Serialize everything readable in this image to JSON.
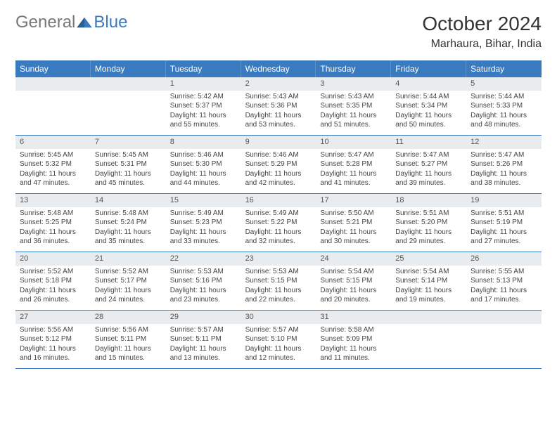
{
  "logo": {
    "general": "General",
    "blue": "Blue"
  },
  "title": "October 2024",
  "location": "Marhaura, Bihar, India",
  "colors": {
    "header_bg": "#3a7bbf",
    "header_text": "#ffffff",
    "daynum_bg": "#e9ecef",
    "week_border": "#3a7bbf",
    "body_text": "#444444"
  },
  "weekdays": [
    "Sunday",
    "Monday",
    "Tuesday",
    "Wednesday",
    "Thursday",
    "Friday",
    "Saturday"
  ],
  "weeks": [
    [
      {
        "n": "",
        "lines": [
          "",
          "",
          "",
          ""
        ]
      },
      {
        "n": "",
        "lines": [
          "",
          "",
          "",
          ""
        ]
      },
      {
        "n": "1",
        "lines": [
          "Sunrise: 5:42 AM",
          "Sunset: 5:37 PM",
          "Daylight: 11 hours",
          "and 55 minutes."
        ]
      },
      {
        "n": "2",
        "lines": [
          "Sunrise: 5:43 AM",
          "Sunset: 5:36 PM",
          "Daylight: 11 hours",
          "and 53 minutes."
        ]
      },
      {
        "n": "3",
        "lines": [
          "Sunrise: 5:43 AM",
          "Sunset: 5:35 PM",
          "Daylight: 11 hours",
          "and 51 minutes."
        ]
      },
      {
        "n": "4",
        "lines": [
          "Sunrise: 5:44 AM",
          "Sunset: 5:34 PM",
          "Daylight: 11 hours",
          "and 50 minutes."
        ]
      },
      {
        "n": "5",
        "lines": [
          "Sunrise: 5:44 AM",
          "Sunset: 5:33 PM",
          "Daylight: 11 hours",
          "and 48 minutes."
        ]
      }
    ],
    [
      {
        "n": "6",
        "lines": [
          "Sunrise: 5:45 AM",
          "Sunset: 5:32 PM",
          "Daylight: 11 hours",
          "and 47 minutes."
        ]
      },
      {
        "n": "7",
        "lines": [
          "Sunrise: 5:45 AM",
          "Sunset: 5:31 PM",
          "Daylight: 11 hours",
          "and 45 minutes."
        ]
      },
      {
        "n": "8",
        "lines": [
          "Sunrise: 5:46 AM",
          "Sunset: 5:30 PM",
          "Daylight: 11 hours",
          "and 44 minutes."
        ]
      },
      {
        "n": "9",
        "lines": [
          "Sunrise: 5:46 AM",
          "Sunset: 5:29 PM",
          "Daylight: 11 hours",
          "and 42 minutes."
        ]
      },
      {
        "n": "10",
        "lines": [
          "Sunrise: 5:47 AM",
          "Sunset: 5:28 PM",
          "Daylight: 11 hours",
          "and 41 minutes."
        ]
      },
      {
        "n": "11",
        "lines": [
          "Sunrise: 5:47 AM",
          "Sunset: 5:27 PM",
          "Daylight: 11 hours",
          "and 39 minutes."
        ]
      },
      {
        "n": "12",
        "lines": [
          "Sunrise: 5:47 AM",
          "Sunset: 5:26 PM",
          "Daylight: 11 hours",
          "and 38 minutes."
        ]
      }
    ],
    [
      {
        "n": "13",
        "lines": [
          "Sunrise: 5:48 AM",
          "Sunset: 5:25 PM",
          "Daylight: 11 hours",
          "and 36 minutes."
        ]
      },
      {
        "n": "14",
        "lines": [
          "Sunrise: 5:48 AM",
          "Sunset: 5:24 PM",
          "Daylight: 11 hours",
          "and 35 minutes."
        ]
      },
      {
        "n": "15",
        "lines": [
          "Sunrise: 5:49 AM",
          "Sunset: 5:23 PM",
          "Daylight: 11 hours",
          "and 33 minutes."
        ]
      },
      {
        "n": "16",
        "lines": [
          "Sunrise: 5:49 AM",
          "Sunset: 5:22 PM",
          "Daylight: 11 hours",
          "and 32 minutes."
        ]
      },
      {
        "n": "17",
        "lines": [
          "Sunrise: 5:50 AM",
          "Sunset: 5:21 PM",
          "Daylight: 11 hours",
          "and 30 minutes."
        ]
      },
      {
        "n": "18",
        "lines": [
          "Sunrise: 5:51 AM",
          "Sunset: 5:20 PM",
          "Daylight: 11 hours",
          "and 29 minutes."
        ]
      },
      {
        "n": "19",
        "lines": [
          "Sunrise: 5:51 AM",
          "Sunset: 5:19 PM",
          "Daylight: 11 hours",
          "and 27 minutes."
        ]
      }
    ],
    [
      {
        "n": "20",
        "lines": [
          "Sunrise: 5:52 AM",
          "Sunset: 5:18 PM",
          "Daylight: 11 hours",
          "and 26 minutes."
        ]
      },
      {
        "n": "21",
        "lines": [
          "Sunrise: 5:52 AM",
          "Sunset: 5:17 PM",
          "Daylight: 11 hours",
          "and 24 minutes."
        ]
      },
      {
        "n": "22",
        "lines": [
          "Sunrise: 5:53 AM",
          "Sunset: 5:16 PM",
          "Daylight: 11 hours",
          "and 23 minutes."
        ]
      },
      {
        "n": "23",
        "lines": [
          "Sunrise: 5:53 AM",
          "Sunset: 5:15 PM",
          "Daylight: 11 hours",
          "and 22 minutes."
        ]
      },
      {
        "n": "24",
        "lines": [
          "Sunrise: 5:54 AM",
          "Sunset: 5:15 PM",
          "Daylight: 11 hours",
          "and 20 minutes."
        ]
      },
      {
        "n": "25",
        "lines": [
          "Sunrise: 5:54 AM",
          "Sunset: 5:14 PM",
          "Daylight: 11 hours",
          "and 19 minutes."
        ]
      },
      {
        "n": "26",
        "lines": [
          "Sunrise: 5:55 AM",
          "Sunset: 5:13 PM",
          "Daylight: 11 hours",
          "and 17 minutes."
        ]
      }
    ],
    [
      {
        "n": "27",
        "lines": [
          "Sunrise: 5:56 AM",
          "Sunset: 5:12 PM",
          "Daylight: 11 hours",
          "and 16 minutes."
        ]
      },
      {
        "n": "28",
        "lines": [
          "Sunrise: 5:56 AM",
          "Sunset: 5:11 PM",
          "Daylight: 11 hours",
          "and 15 minutes."
        ]
      },
      {
        "n": "29",
        "lines": [
          "Sunrise: 5:57 AM",
          "Sunset: 5:11 PM",
          "Daylight: 11 hours",
          "and 13 minutes."
        ]
      },
      {
        "n": "30",
        "lines": [
          "Sunrise: 5:57 AM",
          "Sunset: 5:10 PM",
          "Daylight: 11 hours",
          "and 12 minutes."
        ]
      },
      {
        "n": "31",
        "lines": [
          "Sunrise: 5:58 AM",
          "Sunset: 5:09 PM",
          "Daylight: 11 hours",
          "and 11 minutes."
        ]
      },
      {
        "n": "",
        "lines": [
          "",
          "",
          "",
          ""
        ]
      },
      {
        "n": "",
        "lines": [
          "",
          "",
          "",
          ""
        ]
      }
    ]
  ]
}
